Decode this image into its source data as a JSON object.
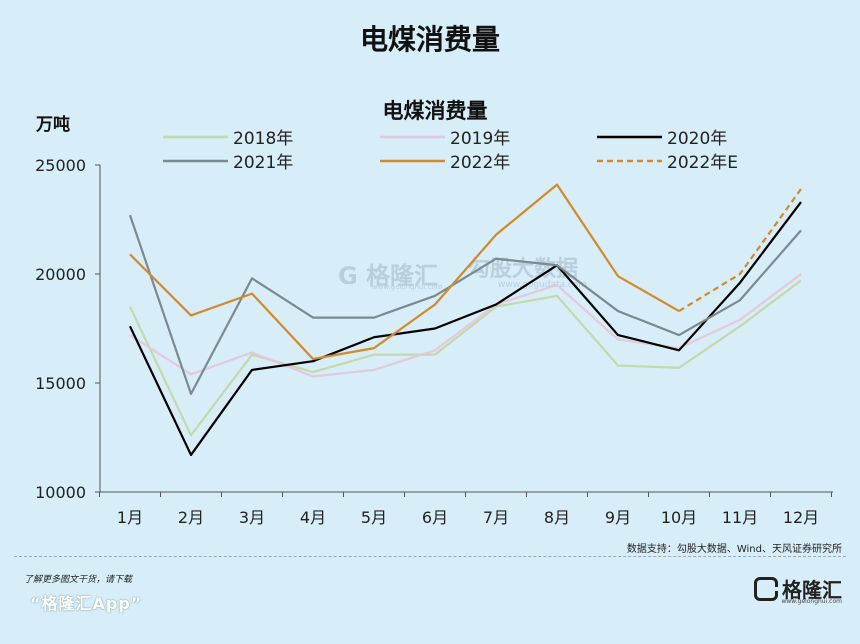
{
  "page_title": "电煤消费量",
  "chart_data": {
    "type": "line",
    "title": "电煤消费量",
    "ylabel": "万吨",
    "xlabel": "",
    "categories": [
      "1月",
      "2月",
      "3月",
      "4月",
      "5月",
      "6月",
      "7月",
      "8月",
      "9月",
      "10月",
      "11月",
      "12月"
    ],
    "ylim": [
      10000,
      25000
    ],
    "yticks": [
      10000,
      15000,
      20000,
      25000
    ],
    "legend_position": "top",
    "series": [
      {
        "name": "2018年",
        "color": "#c3d9aa",
        "dashed": false,
        "values": [
          18500,
          12600,
          16300,
          15500,
          16300,
          16300,
          18500,
          19000,
          15800,
          15700,
          17600,
          19700
        ]
      },
      {
        "name": "2019年",
        "color": "#e3c9dc",
        "dashed": false,
        "values": [
          17200,
          15400,
          16400,
          15300,
          15600,
          16500,
          18600,
          19500,
          17000,
          16600,
          17900,
          20000
        ]
      },
      {
        "name": "2020年",
        "color": "#000000",
        "dashed": false,
        "values": [
          17600,
          11700,
          15600,
          16000,
          17100,
          17500,
          18600,
          20400,
          17200,
          16500,
          19600,
          23300
        ]
      },
      {
        "name": "2021年",
        "color": "#7b8a8f",
        "dashed": false,
        "values": [
          22700,
          14500,
          19800,
          18000,
          18000,
          19000,
          20700,
          20400,
          18300,
          17200,
          18800,
          22000
        ]
      },
      {
        "name": "2022年",
        "color": "#d4892a",
        "dashed": false,
        "values": [
          20900,
          18100,
          19100,
          16100,
          16600,
          18600,
          21800,
          24100,
          19900,
          18300,
          null,
          null
        ]
      },
      {
        "name": "2022年E",
        "color": "#d4892a",
        "dashed": true,
        "values": [
          null,
          null,
          null,
          null,
          null,
          null,
          null,
          null,
          null,
          18300,
          20000,
          23900
        ]
      }
    ],
    "watermark": {
      "name": "格隆汇",
      "url": "www.gelonghui.com",
      "name2": "勾股大数据",
      "url2": "www.gogudata.com"
    }
  },
  "source_note": "数据支持：勾股大数据、Wind、天风证券研究所",
  "download_tip": "了解更多图文干货，请下载",
  "app_name": "“格隆汇App”",
  "brand": {
    "name": "格隆汇",
    "url": "www.gelonghui.com"
  }
}
